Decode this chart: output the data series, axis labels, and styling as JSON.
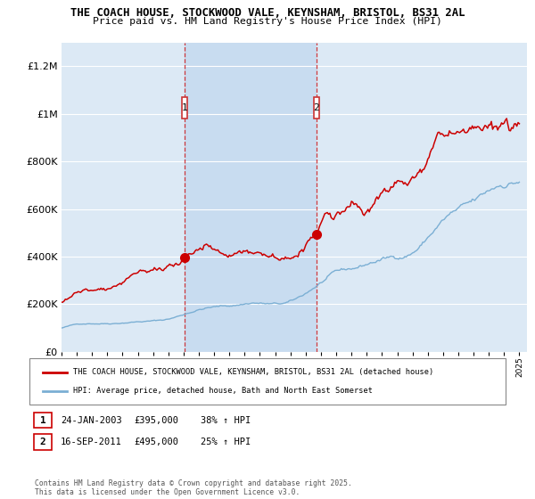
{
  "title_line1": "THE COACH HOUSE, STOCKWOOD VALE, KEYNSHAM, BRISTOL, BS31 2AL",
  "title_line2": "Price paid vs. HM Land Registry's House Price Index (HPI)",
  "bg_color": "#dce9f5",
  "highlight_color": "#c8dcf0",
  "ylim": [
    0,
    1300000
  ],
  "yticks": [
    0,
    200000,
    400000,
    600000,
    800000,
    1000000,
    1200000
  ],
  "ytick_labels": [
    "£0",
    "£200K",
    "£400K",
    "£600K",
    "£800K",
    "£1M",
    "£1.2M"
  ],
  "xlim_start": 1995,
  "xlim_end": 2025.5,
  "red_line_color": "#cc0000",
  "blue_line_color": "#7bafd4",
  "purchase1_x": 2003.07,
  "purchase1_y": 395000,
  "purchase2_x": 2011.71,
  "purchase2_y": 495000,
  "vline1_x": 2003.07,
  "vline2_x": 2011.71,
  "legend_red_label": "THE COACH HOUSE, STOCKWOOD VALE, KEYNSHAM, BRISTOL, BS31 2AL (detached house)",
  "legend_blue_label": "HPI: Average price, detached house, Bath and North East Somerset",
  "annotation1_num": "1",
  "annotation1_date": "24-JAN-2003",
  "annotation1_price": "£395,000",
  "annotation1_hpi": "38% ↑ HPI",
  "annotation2_num": "2",
  "annotation2_date": "16-SEP-2011",
  "annotation2_price": "£495,000",
  "annotation2_hpi": "25% ↑ HPI",
  "footer": "Contains HM Land Registry data © Crown copyright and database right 2025.\nThis data is licensed under the Open Government Licence v3.0."
}
